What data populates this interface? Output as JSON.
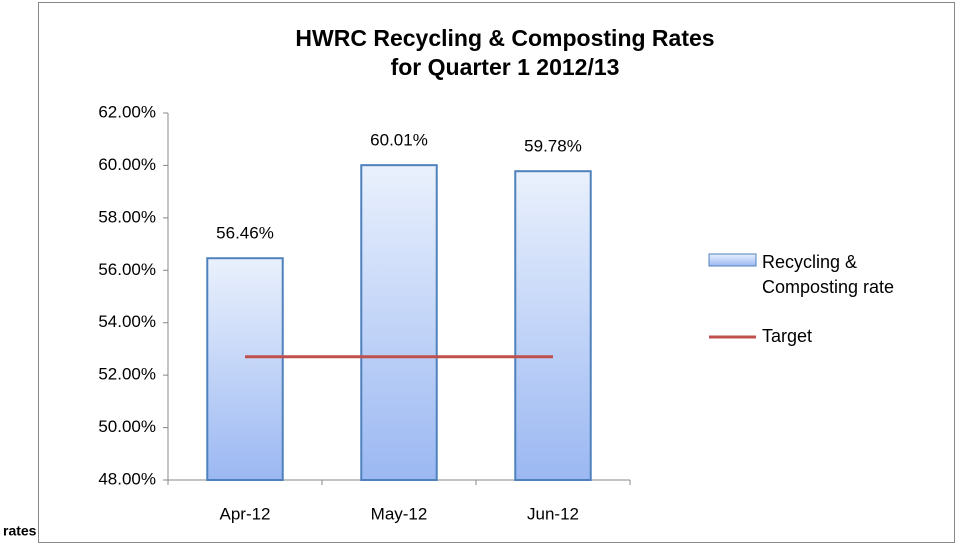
{
  "chart_data": {
    "type": "bar",
    "title": "HWRC Recycling & Composting Rates",
    "subtitle": "for Quarter 1 2012/13",
    "side_label": "rates",
    "categories": [
      "Apr-12",
      "May-12",
      "Jun-12"
    ],
    "series": [
      {
        "name": "Recycling & Composting rate",
        "type": "bar",
        "color": "#4f81bd",
        "values": [
          56.46,
          60.01,
          59.78
        ],
        "value_labels": [
          "56.46%",
          "60.01%",
          "59.78%"
        ]
      },
      {
        "name": "Target",
        "type": "line",
        "color": "#c0504d",
        "values": [
          52.7,
          52.7,
          52.7
        ]
      }
    ],
    "ylim": [
      48,
      62
    ],
    "yticks": [
      {
        "value": 48,
        "label": "48.00%"
      },
      {
        "value": 50,
        "label": "50.00%"
      },
      {
        "value": 52,
        "label": "52.00%"
      },
      {
        "value": 54,
        "label": "54.00%"
      },
      {
        "value": 56,
        "label": "56.00%"
      },
      {
        "value": 58,
        "label": "58.00%"
      },
      {
        "value": 60,
        "label": "60.00%"
      },
      {
        "value": 62,
        "label": "62.00%"
      }
    ],
    "legend": "right"
  }
}
